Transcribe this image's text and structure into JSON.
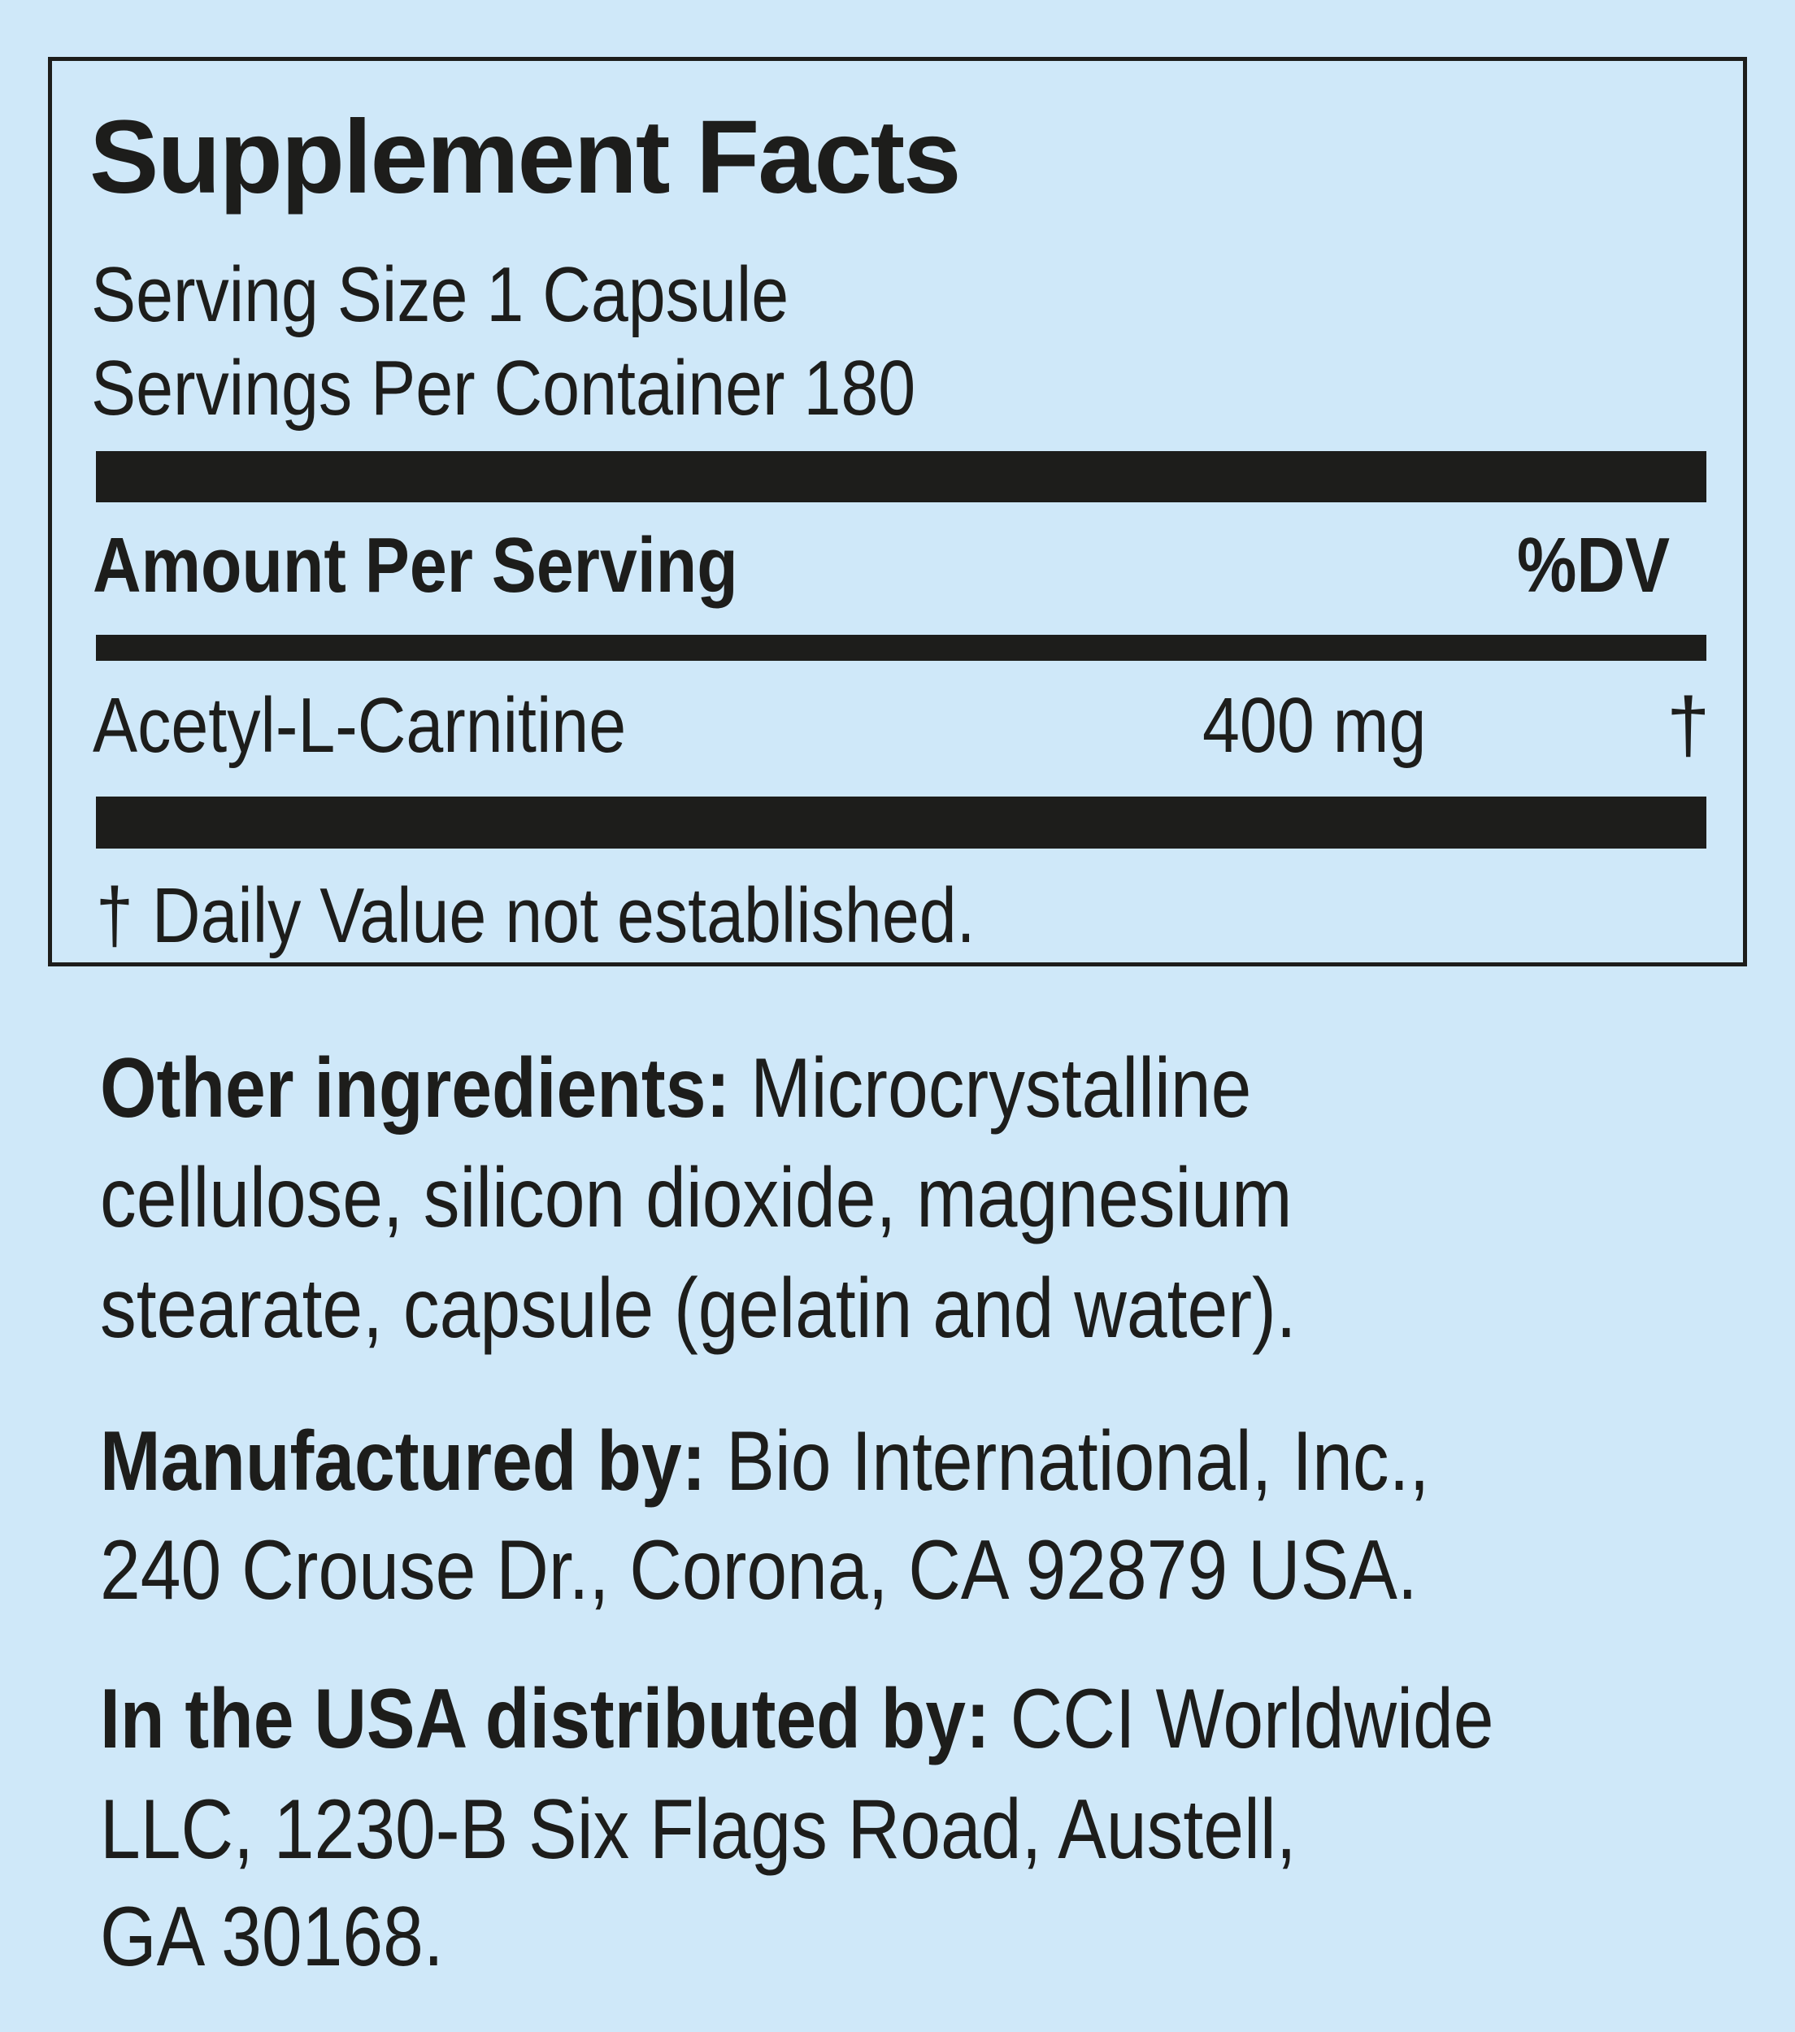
{
  "colors": {
    "background": "#cfe8f9",
    "text": "#1d1d1b"
  },
  "title": "Supplement Facts",
  "serving_size": "Serving Size 1 Capsule",
  "servings_per_container": "Servings Per Container 180",
  "header": {
    "amount": "Amount Per Serving",
    "dv": "%DV"
  },
  "ingredients": [
    {
      "name": "Acetyl-L-Carnitine",
      "amount": "400 mg",
      "dv": "†"
    }
  ],
  "footnote": "† Daily Value not established.",
  "other": {
    "label": "Other ingredients:",
    "lines": [
      " Microcrystalline",
      "cellulose, silicon dioxide, magnesium",
      "stearate, capsule (gelatin and water)."
    ]
  },
  "manufacturer": {
    "label": "Manufactured by:",
    "lines": [
      " Bio International, Inc.,",
      "240 Crouse Dr., Corona, CA 92879 USA."
    ]
  },
  "distributor": {
    "label": "In the USA distributed by:",
    "lines": [
      " CCI Worldwide",
      "LLC, 1230-B  Six Flags Road, Austell,",
      "GA 30168."
    ]
  }
}
